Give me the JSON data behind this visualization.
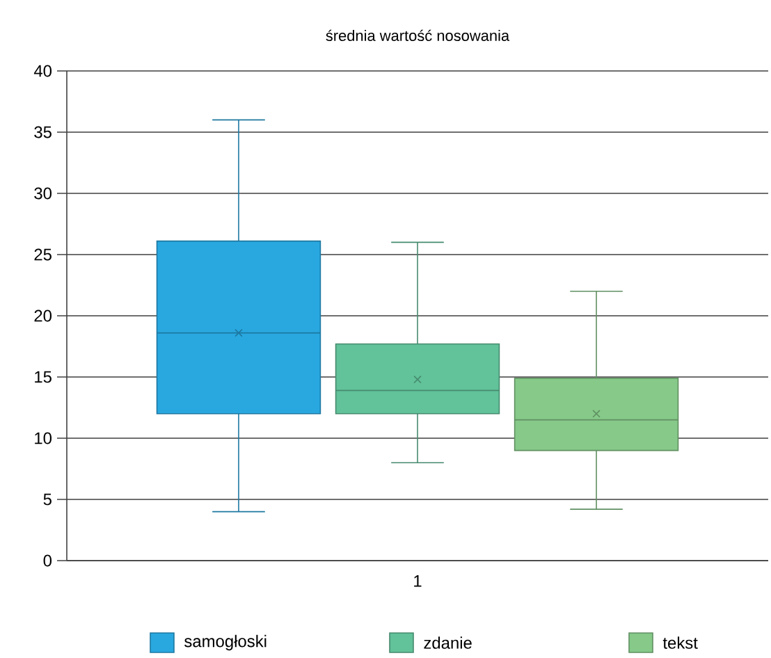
{
  "chart_data": {
    "type": "box",
    "title": "średnia wartość nosowania",
    "categories": [
      "1"
    ],
    "ylim": [
      0,
      40
    ],
    "yticks": [
      0,
      5,
      10,
      15,
      20,
      25,
      30,
      35,
      40
    ],
    "grid": "y",
    "legend": "bottom",
    "series": [
      {
        "name": "samogłoski",
        "color": "#29a8e0",
        "boxes": [
          {
            "low": 4,
            "q1": 12,
            "median": 18.6,
            "q3": 26.1,
            "high": 36,
            "mean": 18.6
          }
        ]
      },
      {
        "name": "zdanie",
        "color": "#62c29a",
        "boxes": [
          {
            "low": 8,
            "q1": 12,
            "median": 13.9,
            "q3": 17.7,
            "high": 26,
            "mean": 14.8
          }
        ]
      },
      {
        "name": "tekst",
        "color": "#86c989",
        "boxes": [
          {
            "low": 4.2,
            "q1": 9,
            "median": 11.5,
            "q3": 14.9,
            "high": 22,
            "mean": 12
          }
        ]
      }
    ]
  }
}
